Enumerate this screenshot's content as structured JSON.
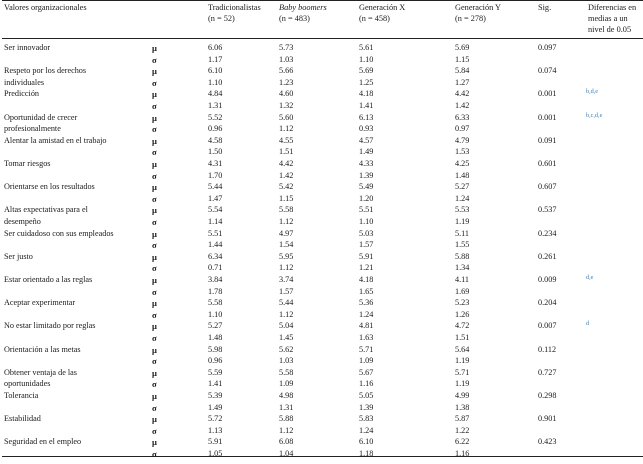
{
  "header": {
    "col_label": "Valores organizacionales",
    "col_trad": [
      "Tradicionalistas",
      "(n = 52)"
    ],
    "col_boom": [
      "Baby boomers",
      "(n = 483)"
    ],
    "col_genx": [
      "Generación X",
      "(n = 458)"
    ],
    "col_geny": [
      "Generación Y",
      "(n = 278)"
    ],
    "col_sig": "Sig.",
    "col_diff": [
      "Diferencias en",
      "medias a un",
      "nivel de 0.05"
    ]
  },
  "rows": [
    {
      "label": [
        "Ser innovador"
      ],
      "mu": [
        "6.06",
        "5.73",
        "5.61",
        "5.69"
      ],
      "sigma": [
        "1.17",
        "1.03",
        "1.10",
        "1.15"
      ],
      "sig": "0.097",
      "diff": ""
    },
    {
      "label": [
        "Respeto por los derechos",
        "individuales"
      ],
      "mu": [
        "6.10",
        "5.66",
        "5.69",
        "5.84"
      ],
      "sigma": [
        "1.10",
        "1.23",
        "1.25",
        "1.27"
      ],
      "sig": "0.074",
      "diff": ""
    },
    {
      "label": [
        "Predicción"
      ],
      "mu": [
        "4.84",
        "4.60",
        "4.18",
        "4.42"
      ],
      "sigma": [
        "1.31",
        "1.32",
        "1.41",
        "1.42"
      ],
      "sig": "0.001",
      "diff": "b,d,e"
    },
    {
      "label": [
        "Oportunidad de crecer",
        "profesionalmente"
      ],
      "mu": [
        "5.52",
        "5.60",
        "6.13",
        "6.33"
      ],
      "sigma": [
        "0.96",
        "1.12",
        "0.93",
        "0.97"
      ],
      "sig": "0.001",
      "diff": "b,c,d,e"
    },
    {
      "label": [
        "Alentar la amistad en el trabajo"
      ],
      "mu": [
        "4.58",
        "4.55",
        "4.57",
        "4.79"
      ],
      "sigma": [
        "1.50",
        "1.51",
        "1.49",
        "1.53"
      ],
      "sig": "0.091",
      "diff": ""
    },
    {
      "label": [
        "Tomar riesgos"
      ],
      "mu": [
        "4.31",
        "4.42",
        "4.33",
        "4.25"
      ],
      "sigma": [
        "1.70",
        "1.42",
        "1.39",
        "1.48"
      ],
      "sig": "0.601",
      "diff": ""
    },
    {
      "label": [
        "Orientarse en los resultados"
      ],
      "mu": [
        "5.44",
        "5.42",
        "5.49",
        "5.27"
      ],
      "sigma": [
        "1.47",
        "1.15",
        "1.20",
        "1.24"
      ],
      "sig": "0.607",
      "diff": ""
    },
    {
      "label": [
        "Altas expectativas para el",
        "desempeño"
      ],
      "mu": [
        "5.54",
        "5.58",
        "5.51",
        "5.53"
      ],
      "sigma": [
        "1.14",
        "1.12",
        "1.10",
        "1.19"
      ],
      "sig": "0.537",
      "diff": ""
    },
    {
      "label": [
        "Ser cuidadoso con sus empleados"
      ],
      "mu": [
        "5.51",
        "4.97",
        "5.03",
        "5.11"
      ],
      "sigma": [
        "1.44",
        "1.54",
        "1.57",
        "1.55"
      ],
      "sig": "0.234",
      "diff": ""
    },
    {
      "label": [
        "Ser justo"
      ],
      "mu": [
        "6.34",
        "5.95",
        "5.91",
        "5.88"
      ],
      "sigma": [
        "0.71",
        "1.12",
        "1.21",
        "1.34"
      ],
      "sig": "0.261",
      "diff": ""
    },
    {
      "label": [
        "Estar orientado a las reglas"
      ],
      "mu": [
        "3.84",
        "3.74",
        "4.18",
        "4.11"
      ],
      "sigma": [
        "1.78",
        "1.57",
        "1.65",
        "1.69"
      ],
      "sig": "0.009",
      "diff": "d,e"
    },
    {
      "label": [
        "Aceptar experimentar"
      ],
      "mu": [
        "5.58",
        "5.44",
        "5.36",
        "5.23"
      ],
      "sigma": [
        "1.10",
        "1.12",
        "1.24",
        "1.26"
      ],
      "sig": "0.204",
      "diff": ""
    },
    {
      "label": [
        "No estar limitado por reglas"
      ],
      "mu": [
        "5.27",
        "5.04",
        "4.81",
        "4.72"
      ],
      "sigma": [
        "1.48",
        "1.45",
        "1.63",
        "1.51"
      ],
      "sig": "0.007",
      "diff": "d"
    },
    {
      "label": [
        "Orientación a las metas"
      ],
      "mu": [
        "5.98",
        "5.62",
        "5.71",
        "5.64"
      ],
      "sigma": [
        "0.96",
        "1.03",
        "1.09",
        "1.19"
      ],
      "sig": "0.112",
      "diff": ""
    },
    {
      "label": [
        "Obtener ventaja de las",
        "oportunidades"
      ],
      "mu": [
        "5.59",
        "5.58",
        "5.67",
        "5.71"
      ],
      "sigma": [
        "1.41",
        "1.09",
        "1.16",
        "1.19"
      ],
      "sig": "0.727",
      "diff": ""
    },
    {
      "label": [
        "Tolerancia"
      ],
      "mu": [
        "5.39",
        "4.98",
        "5.05",
        "4.99"
      ],
      "sigma": [
        "1.49",
        "1.31",
        "1.39",
        "1.38"
      ],
      "sig": "0.298",
      "diff": ""
    },
    {
      "label": [
        "Estabilidad"
      ],
      "mu": [
        "5.72",
        "5.88",
        "5.83",
        "5.87"
      ],
      "sigma": [
        "1.13",
        "1.12",
        "1.24",
        "1.22"
      ],
      "sig": "0.901",
      "diff": ""
    },
    {
      "label": [
        "Seguridad en el empleo"
      ],
      "mu": [
        "5.91",
        "6.08",
        "6.10",
        "6.22"
      ],
      "sigma": [
        "1.05",
        "1.04",
        "1.18",
        "1.16"
      ],
      "sig": "0.423",
      "diff": ""
    }
  ],
  "symbols": {
    "mu": "μ",
    "sigma": "σ"
  }
}
